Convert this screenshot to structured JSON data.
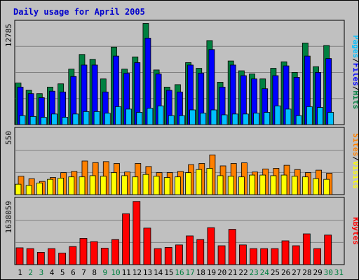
{
  "chart_data": {
    "type": "bar",
    "title": "Daily usage for April 2005",
    "colors": {
      "background": "#c0c0c0",
      "hits": "#008040",
      "files": "#0000ff",
      "pages": "#00c0ff",
      "visits": "#ffff00",
      "sites": "#ff8000",
      "kbytes": "#ff0000",
      "weekend_day": "#008040",
      "weekday": "#000000",
      "title": "#0000cc"
    },
    "legend_top": [
      {
        "key": "pages",
        "label": "Pages"
      },
      {
        "key": "sep1",
        "label": "/"
      },
      {
        "key": "files",
        "label": "Files"
      },
      {
        "key": "sep2",
        "label": "/"
      },
      {
        "key": "hits",
        "label": "Hits"
      }
    ],
    "legend_middle": [
      {
        "key": "sites",
        "label": "Sites"
      },
      {
        "key": "sep",
        "label": "/"
      },
      {
        "key": "visits",
        "label": "Visits"
      }
    ],
    "legend_bottom": [
      {
        "key": "kbytes",
        "label": "KBytes"
      }
    ],
    "categories": [
      "1",
      "2",
      "3",
      "4",
      "5",
      "6",
      "7",
      "8",
      "9",
      "10",
      "11",
      "12",
      "13",
      "14",
      "15",
      "16",
      "17",
      "18",
      "19",
      "20",
      "21",
      "22",
      "23",
      "24",
      "25",
      "26",
      "27",
      "28",
      "29",
      "30",
      "31"
    ],
    "weekend": [
      false,
      true,
      true,
      false,
      false,
      false,
      false,
      false,
      true,
      true,
      false,
      false,
      false,
      false,
      false,
      true,
      true,
      false,
      false,
      false,
      false,
      false,
      true,
      true,
      false,
      false,
      false,
      false,
      false,
      true,
      true
    ],
    "panels": [
      {
        "name": "hits-files-pages",
        "max_label": "12785",
        "ylim": [
          0,
          12785
        ],
        "series": [
          {
            "name": "Hits",
            "key": "hits",
            "values": [
              5100,
              4200,
              3800,
              4600,
              5000,
              6800,
              8600,
              8000,
              5600,
              9500,
              6800,
              8300,
              12400,
              6700,
              4600,
              4900,
              7600,
              6900,
              10300,
              5200,
              7800,
              6600,
              6200,
              5600,
              6900,
              7700,
              6400,
              10000,
              7100,
              9700,
              0
            ]
          },
          {
            "name": "Files",
            "key": "files",
            "values": [
              4600,
              3800,
              3300,
              4100,
              4000,
              5900,
              7300,
              7300,
              4000,
              8400,
              6300,
              7600,
              10600,
              6200,
              4200,
              4000,
              7300,
              6300,
              9200,
              4600,
              7300,
              6000,
              5600,
              4400,
              6000,
              7200,
              5800,
              8400,
              6400,
              8100,
              0
            ]
          },
          {
            "name": "Pages",
            "key": "pages",
            "values": [
              1100,
              1000,
              900,
              1300,
              900,
              1300,
              1600,
              1600,
              1400,
              2200,
              1900,
              1500,
              2000,
              2300,
              1100,
              1100,
              1800,
              1400,
              1800,
              1200,
              1300,
              1300,
              1400,
              1500,
              2300,
              1900,
              1100,
              2200,
              2100,
              1500,
              0
            ]
          }
        ]
      },
      {
        "name": "sites-visits",
        "max_label": "550",
        "ylim": [
          0,
          550
        ],
        "series": [
          {
            "name": "Sites",
            "key": "sites",
            "values": [
              150,
              130,
              108,
              140,
              180,
              190,
              275,
              262,
              270,
              255,
              185,
              255,
              230,
              180,
              180,
              190,
              245,
              255,
              325,
              235,
              255,
              260,
              185,
              210,
              215,
              240,
              205,
              180,
              200,
              175,
              0
            ]
          },
          {
            "name": "Visits",
            "key": "visits",
            "values": [
              85,
              75,
              95,
              125,
              135,
              145,
              145,
              155,
              150,
              180,
              155,
              145,
              165,
              150,
              140,
              145,
              180,
              205,
              215,
              155,
              150,
              145,
              160,
              160,
              155,
              160,
              150,
              145,
              130,
              125,
              0
            ]
          }
        ]
      },
      {
        "name": "kbytes",
        "max_label": "1638059",
        "ylim": [
          0,
          1638059
        ],
        "series": [
          {
            "name": "KBytes",
            "key": "kbytes",
            "values": [
              410000,
              390000,
              300000,
              390000,
              280000,
              440000,
              640000,
              560000,
              400000,
              610000,
              1240000,
              1540000,
              890000,
              390000,
              420000,
              480000,
              700000,
              610000,
              900000,
              460000,
              860000,
              480000,
              390000,
              390000,
              390000,
              580000,
              460000,
              750000,
              390000,
              720000,
              0
            ]
          }
        ]
      }
    ]
  }
}
